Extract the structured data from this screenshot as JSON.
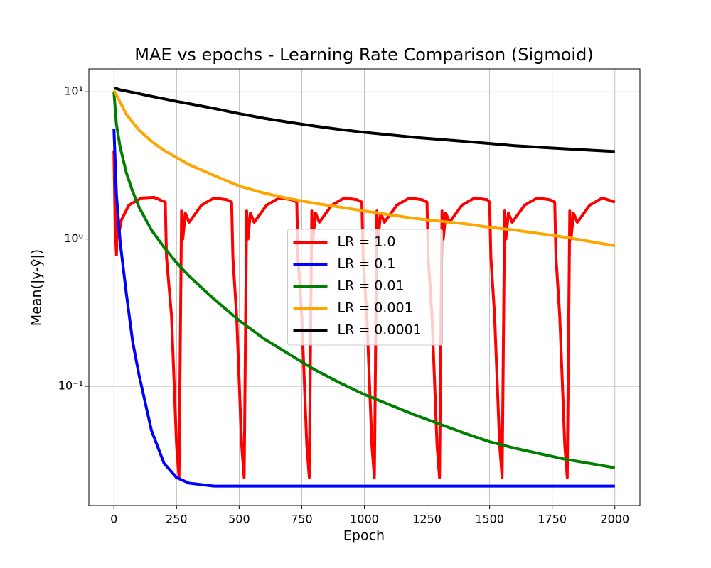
{
  "chart_data": {
    "type": "line",
    "title": "MAE vs epochs - Learning Rate Comparison (Sigmoid)",
    "xlabel": "Epoch",
    "ylabel": "Mean(|y-ŷ|)",
    "xlim": [
      -100,
      2100
    ],
    "xticks": [
      0,
      250,
      500,
      750,
      1000,
      1250,
      1500,
      1750,
      2000
    ],
    "ylim": [
      0.0155,
      14.3
    ],
    "yscale": "log",
    "yticks": [
      {
        "value": 0.1,
        "label": "10⁻¹"
      },
      {
        "value": 1,
        "label": "10⁰"
      },
      {
        "value": 10,
        "label": "10¹"
      }
    ],
    "grid": true,
    "legend": "center",
    "x": [
      0,
      10,
      25,
      50,
      75,
      100,
      150,
      200,
      250,
      300,
      400,
      500,
      600,
      700,
      800,
      900,
      1000,
      1200,
      1400,
      1500,
      1600,
      1800,
      2000
    ],
    "series": [
      {
        "name": "LR = 1.0",
        "color": "#ff0000",
        "x": [
          0,
          5,
          10,
          15,
          20,
          30,
          60,
          110,
          160,
          205,
          210,
          230,
          250,
          260,
          270,
          275,
          285,
          300,
          350,
          400,
          450,
          470,
          475,
          490,
          510,
          520,
          530,
          535,
          545,
          560,
          610,
          660,
          710,
          730,
          735,
          750,
          770,
          780,
          790,
          795,
          805,
          820,
          870,
          920,
          970,
          990,
          995,
          1010,
          1030,
          1040,
          1050,
          1055,
          1065,
          1080,
          1130,
          1180,
          1230,
          1250,
          1255,
          1270,
          1290,
          1300,
          1310,
          1315,
          1325,
          1340,
          1390,
          1440,
          1490,
          1500,
          1505,
          1520,
          1540,
          1550,
          1560,
          1565,
          1575,
          1590,
          1640,
          1690,
          1740,
          1760,
          1765,
          1780,
          1800,
          1810,
          1820,
          1825,
          1835,
          1850,
          1900,
          1950,
          2000
        ],
        "values": [
          4.0,
          1.2,
          0.78,
          1.5,
          1.1,
          1.35,
          1.7,
          1.9,
          1.92,
          1.78,
          0.75,
          0.3,
          0.04,
          0.024,
          1.55,
          1.0,
          1.5,
          1.3,
          1.7,
          1.9,
          1.85,
          1.78,
          0.75,
          0.3,
          0.04,
          0.024,
          1.55,
          1.0,
          1.5,
          1.3,
          1.7,
          1.9,
          1.85,
          1.78,
          0.75,
          0.3,
          0.04,
          0.024,
          1.55,
          1.0,
          1.5,
          1.3,
          1.7,
          1.9,
          1.85,
          1.78,
          0.75,
          0.3,
          0.04,
          0.024,
          1.55,
          1.0,
          1.5,
          1.3,
          1.7,
          1.9,
          1.85,
          1.78,
          0.75,
          0.3,
          0.04,
          0.024,
          1.55,
          1.0,
          1.5,
          1.3,
          1.7,
          1.9,
          1.85,
          1.78,
          0.75,
          0.3,
          0.04,
          0.024,
          1.55,
          1.0,
          1.5,
          1.3,
          1.7,
          1.9,
          1.85,
          1.78,
          0.75,
          0.3,
          0.04,
          0.024,
          1.55,
          1.0,
          1.5,
          1.3,
          1.7,
          1.9,
          1.78
        ]
      },
      {
        "name": "LR = 0.1",
        "color": "#0000ff",
        "values": [
          5.6,
          2.0,
          0.95,
          0.42,
          0.2,
          0.12,
          0.05,
          0.03,
          0.024,
          0.022,
          0.021,
          0.021,
          0.021,
          0.021,
          0.021,
          0.021,
          0.021,
          0.021,
          0.021,
          0.021,
          0.021,
          0.021,
          0.021
        ]
      },
      {
        "name": "LR = 0.01",
        "color": "#008000",
        "values": [
          10,
          6.0,
          4.2,
          2.8,
          2.1,
          1.65,
          1.15,
          0.88,
          0.69,
          0.56,
          0.39,
          0.28,
          0.21,
          0.165,
          0.13,
          0.106,
          0.088,
          0.064,
          0.048,
          0.042,
          0.038,
          0.032,
          0.028
        ]
      },
      {
        "name": "LR = 0.001",
        "color": "#ffa500",
        "values": [
          10.2,
          9.5,
          8.5,
          7.0,
          6.2,
          5.5,
          4.6,
          4.0,
          3.57,
          3.2,
          2.7,
          2.29,
          2.05,
          1.88,
          1.75,
          1.65,
          1.55,
          1.38,
          1.27,
          1.2,
          1.15,
          1.03,
          0.9
        ]
      },
      {
        "name": "LR = 0.0001",
        "color": "#000000",
        "values": [
          10.6,
          10.5,
          10.3,
          10.1,
          9.9,
          9.7,
          9.3,
          8.95,
          8.6,
          8.3,
          7.7,
          7.1,
          6.6,
          6.2,
          5.85,
          5.55,
          5.3,
          4.9,
          4.6,
          4.45,
          4.3,
          4.1,
          3.93
        ]
      }
    ]
  }
}
